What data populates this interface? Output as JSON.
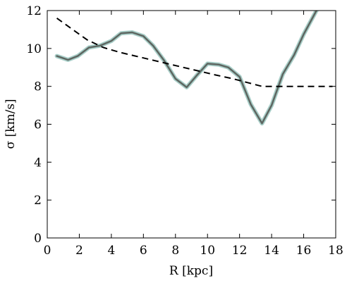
{
  "chart_data": {
    "type": "line",
    "title": "",
    "xlabel": "R [kpc]",
    "ylabel": "σ [km/s]",
    "xlim": [
      0,
      18
    ],
    "ylim": [
      0,
      12
    ],
    "xticks": [
      "0",
      "2",
      "4",
      "6",
      "8",
      "10",
      "12",
      "14",
      "16",
      "18"
    ],
    "yticks": [
      "0",
      "2",
      "4",
      "6",
      "8",
      "10",
      "12"
    ],
    "grid": false,
    "legend": "none",
    "series": [
      {
        "style": "solid",
        "color": "#5e6661",
        "band_color": "#a9cfc9",
        "x": [
          0.6,
          1.3,
          1.9,
          2.6,
          3.3,
          4.0,
          4.6,
          5.3,
          6.0,
          6.6,
          7.3,
          8.0,
          8.7,
          9.3,
          10.0,
          10.7,
          11.3,
          12.0,
          12.7,
          13.4,
          14.0,
          14.7,
          15.4,
          16.0,
          16.8
        ],
        "y": [
          9.6,
          9.4,
          9.6,
          10.05,
          10.15,
          10.4,
          10.8,
          10.85,
          10.65,
          10.15,
          9.35,
          8.4,
          7.95,
          8.55,
          9.2,
          9.15,
          9.0,
          8.5,
          7.05,
          6.05,
          7.0,
          8.65,
          9.65,
          10.75,
          12.0
        ]
      },
      {
        "style": "dashed",
        "color": "#000000",
        "x": [
          0.6,
          1.5,
          2.5,
          3.5,
          4.5,
          5.5,
          6.5,
          7.5,
          8.5,
          9.5,
          10.5,
          11.5,
          12.5,
          13.4,
          14.0,
          15.0,
          16.0,
          17.0,
          17.8
        ],
        "y": [
          11.6,
          11.05,
          10.45,
          10.05,
          9.8,
          9.6,
          9.4,
          9.2,
          9.0,
          8.8,
          8.6,
          8.42,
          8.2,
          8.0,
          8.0,
          8.0,
          8.0,
          8.0,
          8.0
        ]
      }
    ]
  }
}
